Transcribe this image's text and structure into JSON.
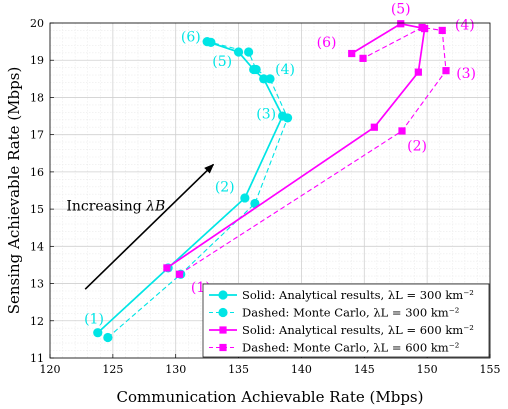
{
  "chart_data": {
    "type": "line",
    "xlabel": "Communication Achievable Rate (Mbps)",
    "ylabel": "Sensing Achievable Rate (Mbps)",
    "xlim": [
      120,
      155
    ],
    "ylim": [
      11,
      20
    ],
    "xticks": [
      120,
      125,
      130,
      135,
      140,
      145,
      150,
      155
    ],
    "yticks": [
      11,
      12,
      13,
      14,
      15,
      16,
      17,
      18,
      19,
      20
    ],
    "grid": true,
    "minor_grid": true,
    "legend_position": "bottom-right",
    "colors": {
      "cyan": "#00e5e5",
      "magenta": "#ff00ff",
      "arrow": "#000000"
    },
    "series": [
      {
        "name": "Solid: Analytical results, λL = 300 km⁻²",
        "legend_main": "Solid: Analytical results, ",
        "legend_math": "λL = 300 km⁻²",
        "color": "#00e5e5",
        "dash": "solid",
        "marker": "circle",
        "x": [
          123.8,
          129.4,
          135.5,
          138.5,
          137.0,
          136.2,
          135.0,
          132.5
        ],
        "y": [
          11.68,
          13.42,
          15.3,
          17.5,
          18.5,
          18.75,
          19.22,
          19.5
        ]
      },
      {
        "name": "Dashed: Monte Carlo, λL = 300 km⁻²",
        "legend_main": "Dashed: Monte Carlo, ",
        "legend_math": "λL = 300 km⁻²",
        "color": "#00e5e5",
        "dash": "dashed",
        "marker": "circle",
        "x": [
          124.6,
          130.4,
          136.3,
          138.9,
          137.5,
          136.4,
          135.8,
          132.8
        ],
        "y": [
          11.55,
          13.25,
          15.15,
          17.45,
          18.5,
          18.75,
          19.22,
          19.48
        ]
      },
      {
        "name": "Solid: Analytical results, λL = 600 km⁻²",
        "legend_main": "Solid: Analytical results, ",
        "legend_math": "λL = 600 km⁻²",
        "color": "#ff00ff",
        "dash": "solid",
        "marker": "square",
        "x": [
          129.3,
          145.8,
          149.3,
          149.8,
          147.9,
          144.0
        ],
        "y": [
          13.42,
          17.2,
          18.68,
          19.85,
          19.98,
          19.18
        ]
      },
      {
        "name": "Dashed: Monte Carlo, λL = 600 km⁻²",
        "legend_main": "Dashed: Monte Carlo, ",
        "legend_math": "λL = 600 km⁻²",
        "color": "#ff00ff",
        "dash": "dashed",
        "marker": "square",
        "x": [
          130.3,
          148.0,
          151.5,
          151.2,
          149.6,
          144.9
        ],
        "y": [
          13.25,
          17.1,
          18.72,
          19.8,
          19.88,
          19.05
        ]
      }
    ],
    "annotations": [
      {
        "text": "(1)",
        "x": 123.5,
        "y": 11.93,
        "color": "#00e5e5"
      },
      {
        "text": "(2)",
        "x": 133.9,
        "y": 15.47,
        "color": "#00e5e5"
      },
      {
        "text": "(3)",
        "x": 137.2,
        "y": 17.43,
        "color": "#00e5e5"
      },
      {
        "text": "(4)",
        "x": 138.7,
        "y": 18.63,
        "color": "#00e5e5"
      },
      {
        "text": "(5)",
        "x": 133.7,
        "y": 18.85,
        "color": "#00e5e5"
      },
      {
        "text": "(6)",
        "x": 131.2,
        "y": 19.5,
        "color": "#00e5e5"
      },
      {
        "text": "(1)",
        "x": 132.0,
        "y": 12.77,
        "color": "#ff00ff"
      },
      {
        "text": "(2)",
        "x": 149.2,
        "y": 16.58,
        "color": "#ff00ff"
      },
      {
        "text": "(3)",
        "x": 153.1,
        "y": 18.52,
        "color": "#ff00ff"
      },
      {
        "text": "(4)",
        "x": 153.0,
        "y": 19.82,
        "color": "#ff00ff"
      },
      {
        "text": "(5)",
        "x": 147.9,
        "y": 20.25,
        "color": "#ff00ff"
      },
      {
        "text": "(6)",
        "x": 142.0,
        "y": 19.35,
        "color": "#ff00ff"
      }
    ],
    "arrow": {
      "label_main": "Increasing ",
      "label_math": "λB",
      "label_x": 121.3,
      "label_y": 15.1,
      "from": [
        122.8,
        12.85
      ],
      "to": [
        133.0,
        16.2
      ]
    }
  }
}
